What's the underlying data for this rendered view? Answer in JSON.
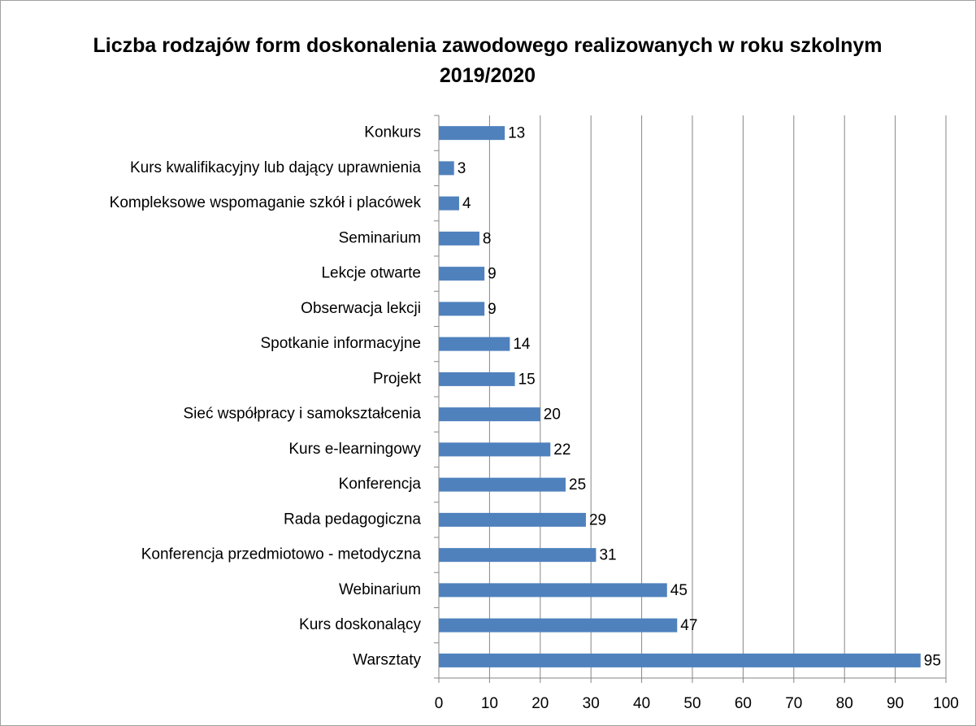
{
  "chart_data": {
    "type": "bar",
    "orientation": "horizontal",
    "title": "Liczba rodzajów form doskonalenia zawodowego realizowanych w roku szkolnym 2019/2020",
    "categories": [
      "Konkurs",
      "Kurs kwalifikacyjny lub dający uprawnienia",
      "Kompleksowe wspomaganie szkół i placówek",
      "Seminarium",
      "Lekcje otwarte",
      "Obserwacja lekcji",
      "Spotkanie informacyjne",
      "Projekt",
      "Sieć współpracy i samokształcenia",
      "Kurs e-learningowy",
      "Konferencja",
      "Rada pedagogiczna",
      "Konferencja przedmiotowo - metodyczna",
      "Webinarium",
      "Kurs doskonalący",
      "Warsztaty"
    ],
    "values": [
      13,
      3,
      4,
      8,
      9,
      9,
      14,
      15,
      20,
      22,
      25,
      29,
      31,
      45,
      47,
      95
    ],
    "color": "#4f81bd",
    "xlim": [
      0,
      100
    ],
    "xticks": [
      0,
      10,
      20,
      30,
      40,
      50,
      60,
      70,
      80,
      90,
      100
    ],
    "grid": true
  }
}
